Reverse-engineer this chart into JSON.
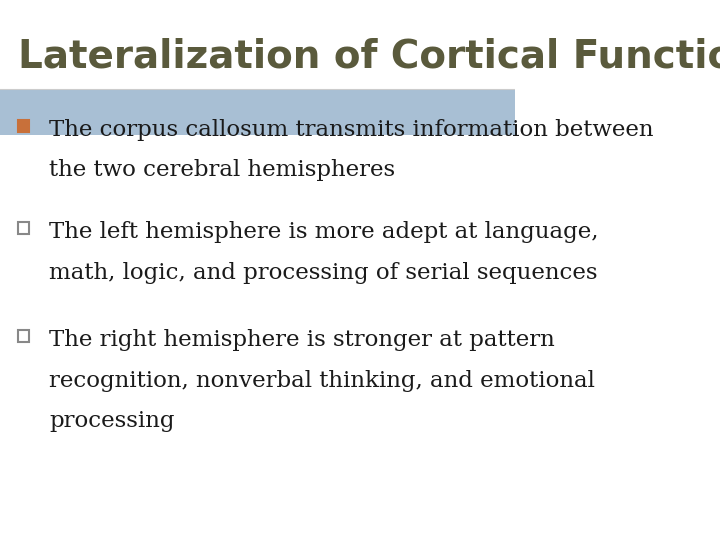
{
  "title": "Lateralization of Cortical Function",
  "title_color": "#5a5a3c",
  "title_fontsize": 28,
  "background_color": "#ffffff",
  "bullet_highlight_color": "#a8bfd4",
  "bullet_orange_color": "#c8703a",
  "bullet_gray_color": "#888888",
  "bullet_text_color": "#1a1a1a",
  "bullet_fontsize": 16.5,
  "bullets": [
    {
      "line1": "The corpus callosum transmits information between",
      "line2": "the two cerebral hemispheres",
      "highlight": true,
      "bullet_color": "#c8703a"
    },
    {
      "line1": "The left hemisphere is more adept at language,",
      "line2": "math, logic, and processing of serial sequences",
      "highlight": false,
      "bullet_color": "#888888"
    },
    {
      "line1": "The right hemisphere is stronger at pattern",
      "line2": "recognition, nonverbal thinking, and emotional",
      "line3": "processing",
      "highlight": false,
      "bullet_color": "#888888"
    }
  ]
}
